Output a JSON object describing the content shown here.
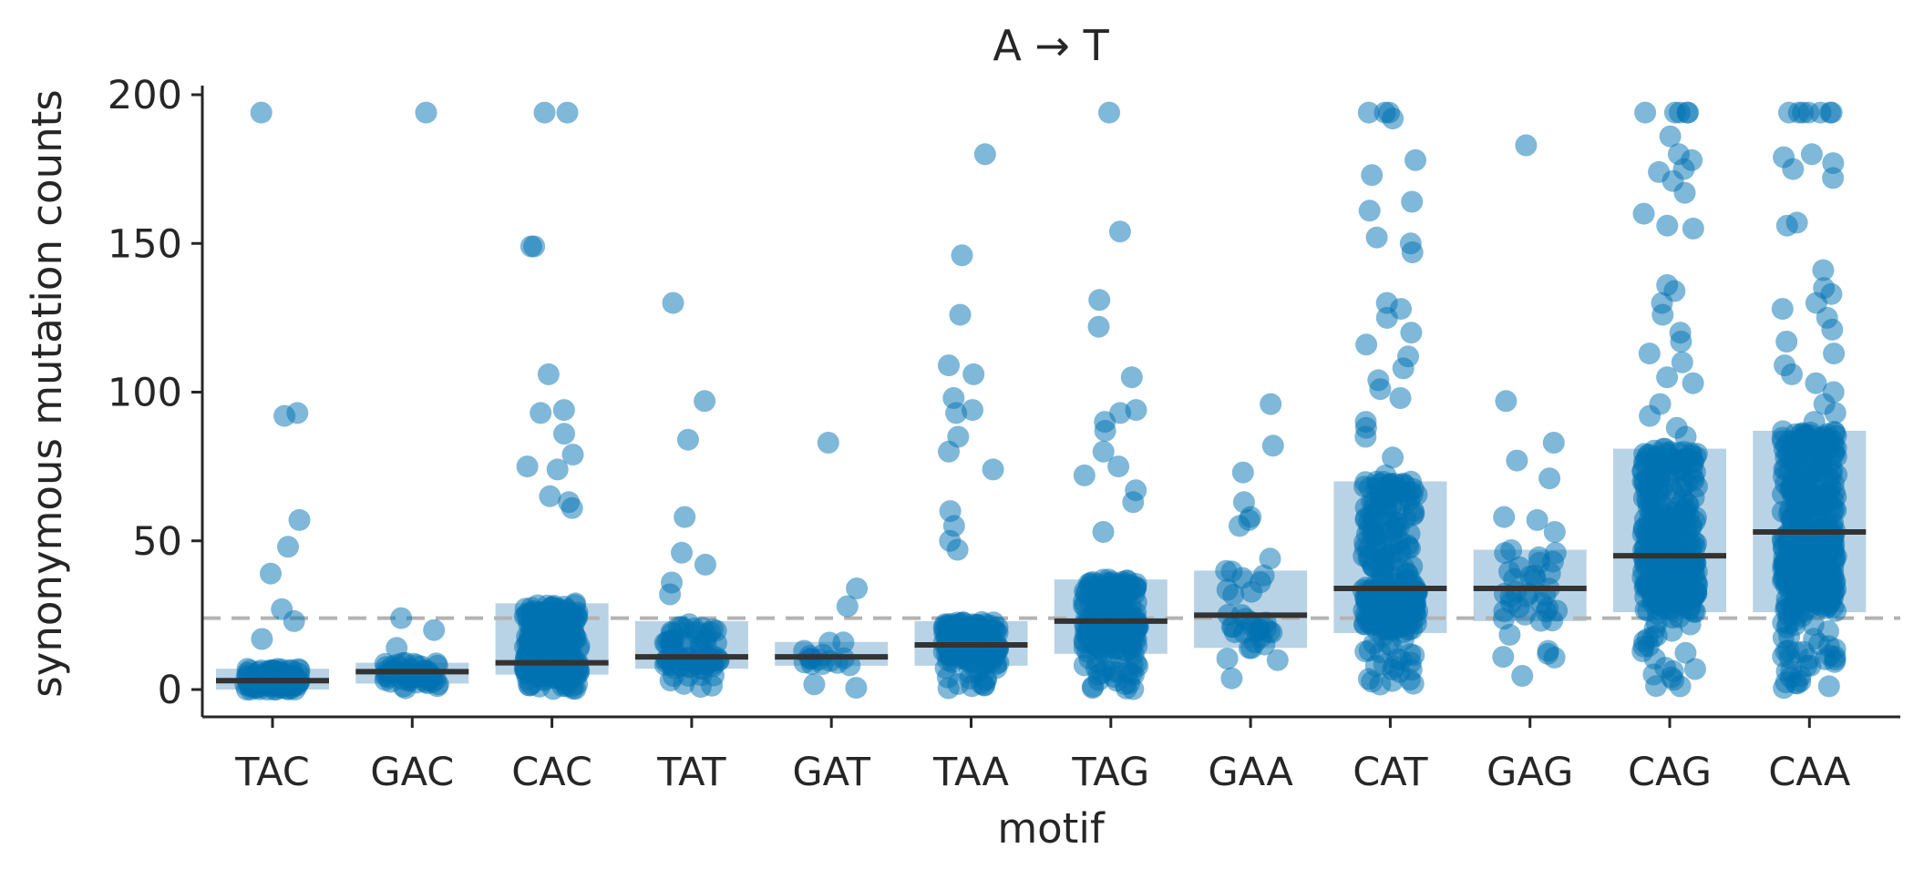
{
  "chart_data": {
    "type": "strip-with-iqr-box",
    "title": "A → T",
    "xlabel": "motif",
    "ylabel": "synonymous mutation counts",
    "ylim": [
      -10,
      205
    ],
    "yticks": [
      0,
      50,
      100,
      150,
      200
    ],
    "reference_line": 24,
    "colors": {
      "point": "#0072b2",
      "box": "#b9d3e6",
      "median": "#333333",
      "axis": "#262626",
      "reference": "#b3b3b3"
    },
    "categories": [
      "TAC",
      "GAC",
      "CAC",
      "TAT",
      "GAT",
      "TAA",
      "TAG",
      "GAA",
      "CAT",
      "GAG",
      "CAG",
      "CAA"
    ],
    "groups": [
      {
        "motif": "TAC",
        "q1": 0,
        "median": 3,
        "q3": 7,
        "n": 120,
        "outliers": [
          194,
          93,
          92,
          57,
          48,
          39,
          27,
          23,
          17
        ]
      },
      {
        "motif": "GAC",
        "q1": 2,
        "median": 6,
        "q3": 9,
        "n": 60,
        "outliers": [
          194,
          24,
          20,
          14
        ]
      },
      {
        "motif": "CAC",
        "q1": 5,
        "median": 9,
        "q3": 29,
        "n": 300,
        "outliers": [
          194,
          194,
          149,
          149,
          106,
          94,
          93,
          86,
          79,
          75,
          74,
          65,
          63,
          61
        ]
      },
      {
        "motif": "TAT",
        "q1": 7,
        "median": 11,
        "q3": 23,
        "n": 80,
        "outliers": [
          130,
          97,
          84,
          58,
          46,
          42,
          36,
          32
        ]
      },
      {
        "motif": "GAT",
        "q1": 8,
        "median": 11,
        "q3": 16,
        "n": 20,
        "outliers": [
          83,
          34,
          28
        ]
      },
      {
        "motif": "TAA",
        "q1": 8,
        "median": 15,
        "q3": 23,
        "n": 180,
        "outliers": [
          180,
          146,
          126,
          109,
          106,
          98,
          94,
          93,
          85,
          80,
          74,
          60,
          55,
          50,
          47
        ]
      },
      {
        "motif": "TAG",
        "q1": 12,
        "median": 23,
        "q3": 37,
        "n": 230,
        "outliers": [
          194,
          154,
          131,
          122,
          105,
          94,
          93,
          90,
          87,
          80,
          75,
          72,
          67,
          63,
          53
        ]
      },
      {
        "motif": "GAA",
        "q1": 14,
        "median": 25,
        "q3": 40,
        "n": 40,
        "outliers": [
          96,
          82,
          73,
          63,
          58,
          57,
          55,
          44
        ]
      },
      {
        "motif": "CAT",
        "q1": 19,
        "median": 34,
        "q3": 70,
        "n": 320,
        "outliers": [
          194,
          194,
          194,
          192,
          178,
          173,
          164,
          161,
          152,
          150,
          147,
          130,
          128,
          125,
          120,
          116,
          112,
          108,
          104,
          101,
          98,
          90,
          88,
          85,
          78,
          72
        ]
      },
      {
        "motif": "GAG",
        "q1": 23,
        "median": 34,
        "q3": 47,
        "n": 45,
        "outliers": [
          183,
          97,
          83,
          77,
          71,
          58,
          57,
          53,
          13,
          12,
          11
        ]
      },
      {
        "motif": "CAG",
        "q1": 26,
        "median": 45,
        "q3": 81,
        "n": 400,
        "outliers": [
          194,
          194,
          194,
          194,
          194,
          186,
          180,
          178,
          175,
          174,
          171,
          167,
          160,
          156,
          155,
          136,
          134,
          130,
          126,
          120,
          117,
          113,
          110,
          105,
          103,
          96,
          92,
          88,
          85
        ]
      },
      {
        "motif": "CAA",
        "q1": 26,
        "median": 53,
        "q3": 87,
        "n": 450,
        "outliers": [
          194,
          194,
          194,
          194,
          194,
          194,
          194,
          180,
          179,
          177,
          175,
          172,
          157,
          156,
          141,
          135,
          133,
          130,
          128,
          125,
          121,
          117,
          113,
          109,
          106,
          103,
          100,
          96,
          93,
          90,
          4
        ]
      }
    ]
  }
}
